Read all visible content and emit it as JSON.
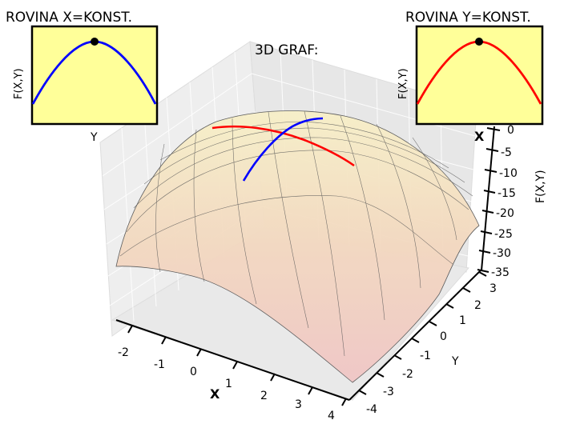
{
  "chart_data": [
    {
      "type": "line",
      "title": "ROVINA X=KONST.",
      "xlabel": "Y",
      "ylabel": "F(X,Y)",
      "series": [
        {
          "name": "y-slice",
          "color": "#0000ff",
          "shape": "downward parabola"
        }
      ],
      "marker": {
        "name": "maximum",
        "color": "#000000"
      },
      "background": "#ffff99"
    },
    {
      "type": "line",
      "title": "ROVINA Y=KONST.",
      "xlabel": "",
      "ylabel": "F(X,Y)",
      "series": [
        {
          "name": "x-slice",
          "color": "#ff0000",
          "shape": "downward parabola"
        }
      ],
      "marker": {
        "name": "maximum",
        "color": "#000000"
      },
      "background": "#ffff99"
    },
    {
      "type": "surface",
      "title": "3D GRAF:",
      "xlabel": "X",
      "ylabel": "Y",
      "zlabel": "F(X,Y)",
      "x_ticks": [
        "-2",
        "-1",
        "0",
        "1",
        "2",
        "3",
        "4"
      ],
      "y_ticks": [
        "-4",
        "-3",
        "-2",
        "-1",
        "0",
        "1",
        "2",
        "3"
      ],
      "z_ticks": [
        "0",
        "-5",
        "-10",
        "-15",
        "-20",
        "-25",
        "-30",
        "-35"
      ],
      "xlim": [
        -2.5,
        4
      ],
      "ylim": [
        -4,
        3.5
      ],
      "zlim": [
        -35,
        0
      ],
      "surface_max": {
        "x": 1,
        "y": 0,
        "z": 0
      },
      "curves": [
        {
          "name": "slice-y-const",
          "color": "#ff0000"
        },
        {
          "name": "slice-x-const",
          "color": "#0000ff"
        }
      ]
    }
  ]
}
